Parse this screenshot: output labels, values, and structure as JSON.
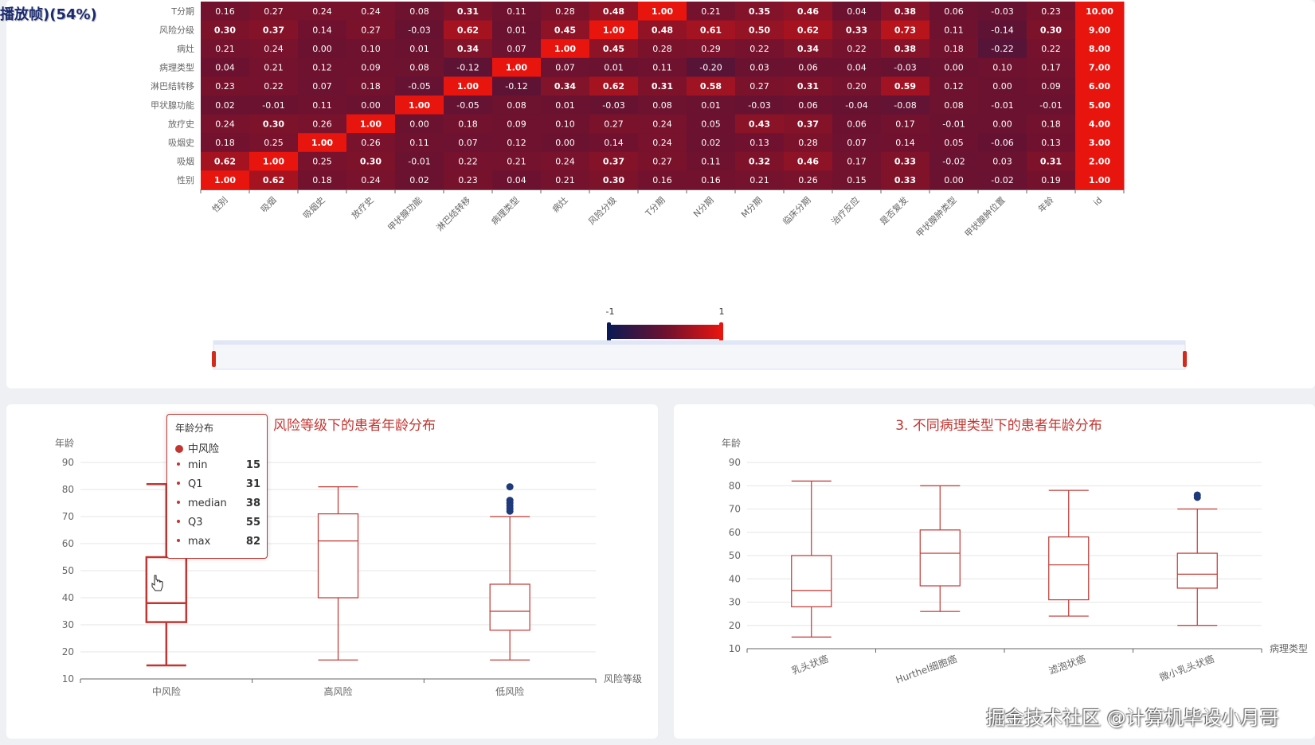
{
  "overlay_title": "播放帧)(54%)",
  "watermark": "掘金技术社区 @计算机毕设小月哥",
  "chart_data": [
    {
      "type": "heatmap",
      "title": "",
      "y_categories": [
        "T分期",
        "风险分级",
        "病灶",
        "病理类型",
        "淋巴结转移",
        "甲状腺功能",
        "放疗史",
        "吸烟史",
        "吸烟",
        "性别"
      ],
      "x_categories": [
        "性别",
        "吸烟",
        "吸烟史",
        "放疗史",
        "甲状腺功能",
        "淋巴结转移",
        "病理类型",
        "病灶",
        "风险分级",
        "T分期",
        "N分期",
        "M分期",
        "临床分期",
        "治疗反应",
        "是否复发",
        "甲状腺肿类型",
        "甲状腺肿位置",
        "年龄",
        "id"
      ],
      "values": [
        [
          "0.16",
          "0.27",
          "0.24",
          "0.24",
          "0.08",
          "0.31",
          "0.11",
          "0.28",
          "0.48",
          "1.00",
          "0.21",
          "0.35",
          "0.46",
          "0.04",
          "0.38",
          "0.06",
          "-0.03",
          "0.23",
          "10.00"
        ],
        [
          "0.30",
          "0.37",
          "0.14",
          "0.27",
          "-0.03",
          "0.62",
          "0.01",
          "0.45",
          "1.00",
          "0.48",
          "0.61",
          "0.50",
          "0.62",
          "0.33",
          "0.73",
          "0.11",
          "-0.14",
          "0.30",
          "9.00"
        ],
        [
          "0.21",
          "0.24",
          "0.00",
          "0.10",
          "0.01",
          "0.34",
          "0.07",
          "1.00",
          "0.45",
          "0.28",
          "0.29",
          "0.22",
          "0.34",
          "0.22",
          "0.38",
          "0.18",
          "-0.22",
          "0.22",
          "8.00"
        ],
        [
          "0.04",
          "0.21",
          "0.12",
          "0.09",
          "0.08",
          "-0.12",
          "1.00",
          "0.07",
          "0.01",
          "0.11",
          "-0.20",
          "0.03",
          "0.06",
          "0.04",
          "-0.03",
          "0.00",
          "0.10",
          "0.17",
          "7.00"
        ],
        [
          "0.23",
          "0.22",
          "0.07",
          "0.18",
          "-0.05",
          "1.00",
          "-0.12",
          "0.34",
          "0.62",
          "0.31",
          "0.58",
          "0.27",
          "0.31",
          "0.20",
          "0.59",
          "0.12",
          "0.00",
          "0.09",
          "6.00"
        ],
        [
          "0.02",
          "-0.01",
          "0.11",
          "0.00",
          "1.00",
          "-0.05",
          "0.08",
          "0.01",
          "-0.03",
          "0.08",
          "0.01",
          "-0.03",
          "0.06",
          "-0.04",
          "-0.08",
          "0.08",
          "-0.01",
          "-0.01",
          "5.00"
        ],
        [
          "0.24",
          "0.30",
          "0.26",
          "1.00",
          "0.00",
          "0.18",
          "0.09",
          "0.10",
          "0.27",
          "0.24",
          "0.05",
          "0.43",
          "0.37",
          "0.06",
          "0.17",
          "-0.01",
          "0.00",
          "0.18",
          "4.00"
        ],
        [
          "0.18",
          "0.25",
          "1.00",
          "0.26",
          "0.11",
          "0.07",
          "0.12",
          "0.00",
          "0.14",
          "0.24",
          "0.02",
          "0.13",
          "0.28",
          "0.07",
          "0.14",
          "0.05",
          "-0.06",
          "0.13",
          "3.00"
        ],
        [
          "0.62",
          "1.00",
          "0.25",
          "0.30",
          "-0.01",
          "0.22",
          "0.21",
          "0.24",
          "0.37",
          "0.27",
          "0.11",
          "0.32",
          "0.46",
          "0.17",
          "0.33",
          "-0.02",
          "0.03",
          "0.31",
          "2.00"
        ],
        [
          "1.00",
          "0.62",
          "0.18",
          "0.24",
          "0.02",
          "0.23",
          "0.04",
          "0.21",
          "0.30",
          "0.16",
          "0.16",
          "0.21",
          "0.26",
          "0.15",
          "0.33",
          "0.00",
          "-0.02",
          "0.19",
          "1.00"
        ]
      ],
      "visual_map": {
        "min_label": "-1",
        "max_label": "1",
        "min": -1,
        "max": 1,
        "low_color": "#0b1a54",
        "mid_color": "#6b1230",
        "high_color": "#e8150f"
      }
    },
    {
      "type": "boxplot",
      "title": "风险等级下的患者年龄分布",
      "xlabel": "风险等级",
      "ylabel": "年龄",
      "ylim": [
        10,
        90
      ],
      "yticks": [
        "10",
        "20",
        "30",
        "40",
        "50",
        "60",
        "70",
        "80",
        "90"
      ],
      "categories": [
        "中风险",
        "高风险",
        "低风险"
      ],
      "boxes": [
        {
          "min": 15,
          "q1": 31,
          "median": 38,
          "q3": 55,
          "max": 82
        },
        {
          "min": 17,
          "q1": 40,
          "median": 61,
          "q3": 71,
          "max": 81
        },
        {
          "min": 17,
          "q1": 28,
          "median": 35,
          "q3": 45,
          "max": 70
        }
      ],
      "outliers": [
        [
          2,
          81
        ],
        [
          2,
          76
        ],
        [
          2,
          75
        ],
        [
          2,
          74
        ],
        [
          2,
          73
        ],
        [
          2,
          72
        ]
      ],
      "color": "#c23531",
      "outlier_color": "#1f3a7a"
    },
    {
      "type": "boxplot",
      "title": "3. 不同病理类型下的患者年龄分布",
      "xlabel": "病理类型",
      "ylabel": "年龄",
      "ylim": [
        10,
        90
      ],
      "yticks": [
        "10",
        "20",
        "30",
        "40",
        "50",
        "60",
        "70",
        "80",
        "90"
      ],
      "categories": [
        "乳头状癌",
        "Hurthel细胞癌",
        "滤泡状癌",
        "微小乳头状癌"
      ],
      "boxes": [
        {
          "min": 15,
          "q1": 28,
          "median": 35,
          "q3": 50,
          "max": 82
        },
        {
          "min": 26,
          "q1": 37,
          "median": 51,
          "q3": 61,
          "max": 80
        },
        {
          "min": 24,
          "q1": 31,
          "median": 46,
          "q3": 58,
          "max": 78
        },
        {
          "min": 20,
          "q1": 36,
          "median": 42,
          "q3": 51,
          "max": 70
        }
      ],
      "outliers": [
        [
          3,
          76
        ],
        [
          3,
          75
        ]
      ],
      "color": "#c23531",
      "outlier_color": "#1f3a7a"
    }
  ],
  "tooltip": {
    "title": "年龄分布",
    "series": "中风险",
    "rows": [
      {
        "label": "min",
        "value": "15"
      },
      {
        "label": "Q1",
        "value": "31"
      },
      {
        "label": "median",
        "value": "38"
      },
      {
        "label": "Q3",
        "value": "55"
      },
      {
        "label": "max",
        "value": "82"
      }
    ]
  }
}
